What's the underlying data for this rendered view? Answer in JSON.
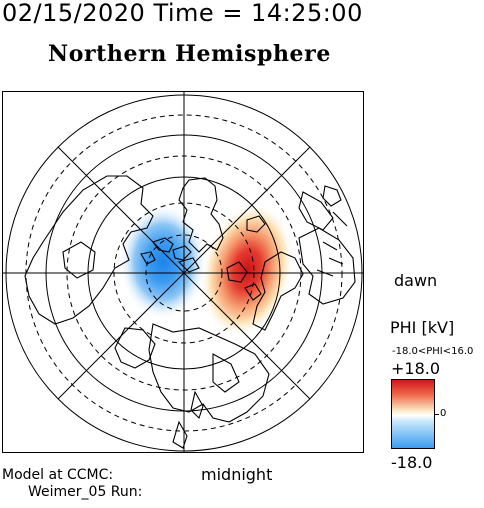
{
  "header": {
    "datetime": "02/15/2020 Time = 14:25:00",
    "hemisphere": "Northern Hemisphere"
  },
  "map": {
    "labels": {
      "dawn": "dawn",
      "midnight": "midnight"
    }
  },
  "colorbar": {
    "title": "PHI [kV]",
    "range_text": "-18.0<PHI<16.0",
    "max_label": "+18.0",
    "mid_label": "0",
    "min_label": "-18.0",
    "colors": {
      "positive": "#d2151c",
      "neutral": "#ffffff",
      "negative": "#3c9cf2"
    }
  },
  "footer": {
    "model": "Model at CCMC:",
    "run": "Weimer_05 Run:"
  }
}
